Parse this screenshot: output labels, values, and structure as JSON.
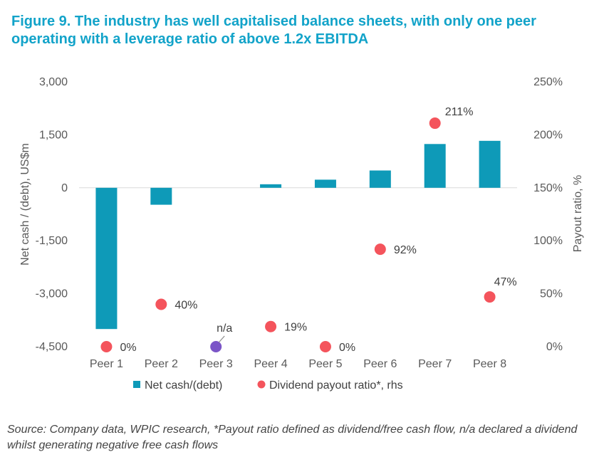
{
  "title": "Figure 9. The industry has well capitalised balance sheets, with only one peer operating with a leverage ratio of above 1.2x EBITDA",
  "source": "Source: Company data, WPIC research, *Payout ratio defined as dividend/free cash flow, n/a declared a dividend whilst generating negative free cash flows",
  "chart_data": {
    "type": "bar",
    "categories": [
      "Peer 1",
      "Peer 2",
      "Peer 3",
      "Peer 4",
      "Peer 5",
      "Peer 6",
      "Peer 7",
      "Peer 8"
    ],
    "series": [
      {
        "name": "Net cash/(debt)",
        "type": "bar",
        "axis": "left",
        "color": "#0e9ab8",
        "values": [
          -4000,
          -480,
          0,
          100,
          230,
          490,
          1240,
          1330
        ]
      },
      {
        "name": "Dividend payout ratio*, rhs",
        "type": "scatter",
        "axis": "right",
        "color": "#f4545c",
        "values": [
          0,
          40,
          0,
          19,
          0,
          92,
          211,
          47
        ],
        "labels": [
          "0%",
          "40%",
          "n/a",
          "19%",
          "0%",
          "92%",
          "211%",
          "47%"
        ],
        "special_color": "#7b55c7",
        "special_index": 2
      }
    ],
    "ylabel": "Net cash / (debt), US$m",
    "y2label": "Payout ratio, %",
    "ylim": [
      -4500,
      3000
    ],
    "y2lim": [
      0,
      250
    ],
    "yticks": [
      "3,000",
      "1,500",
      "0",
      "-1,500",
      "-3,000",
      "-4,500"
    ],
    "y2ticks": [
      "250%",
      "200%",
      "150%",
      "100%",
      "50%",
      "0%"
    ],
    "legend": "bottom",
    "grid": false
  }
}
